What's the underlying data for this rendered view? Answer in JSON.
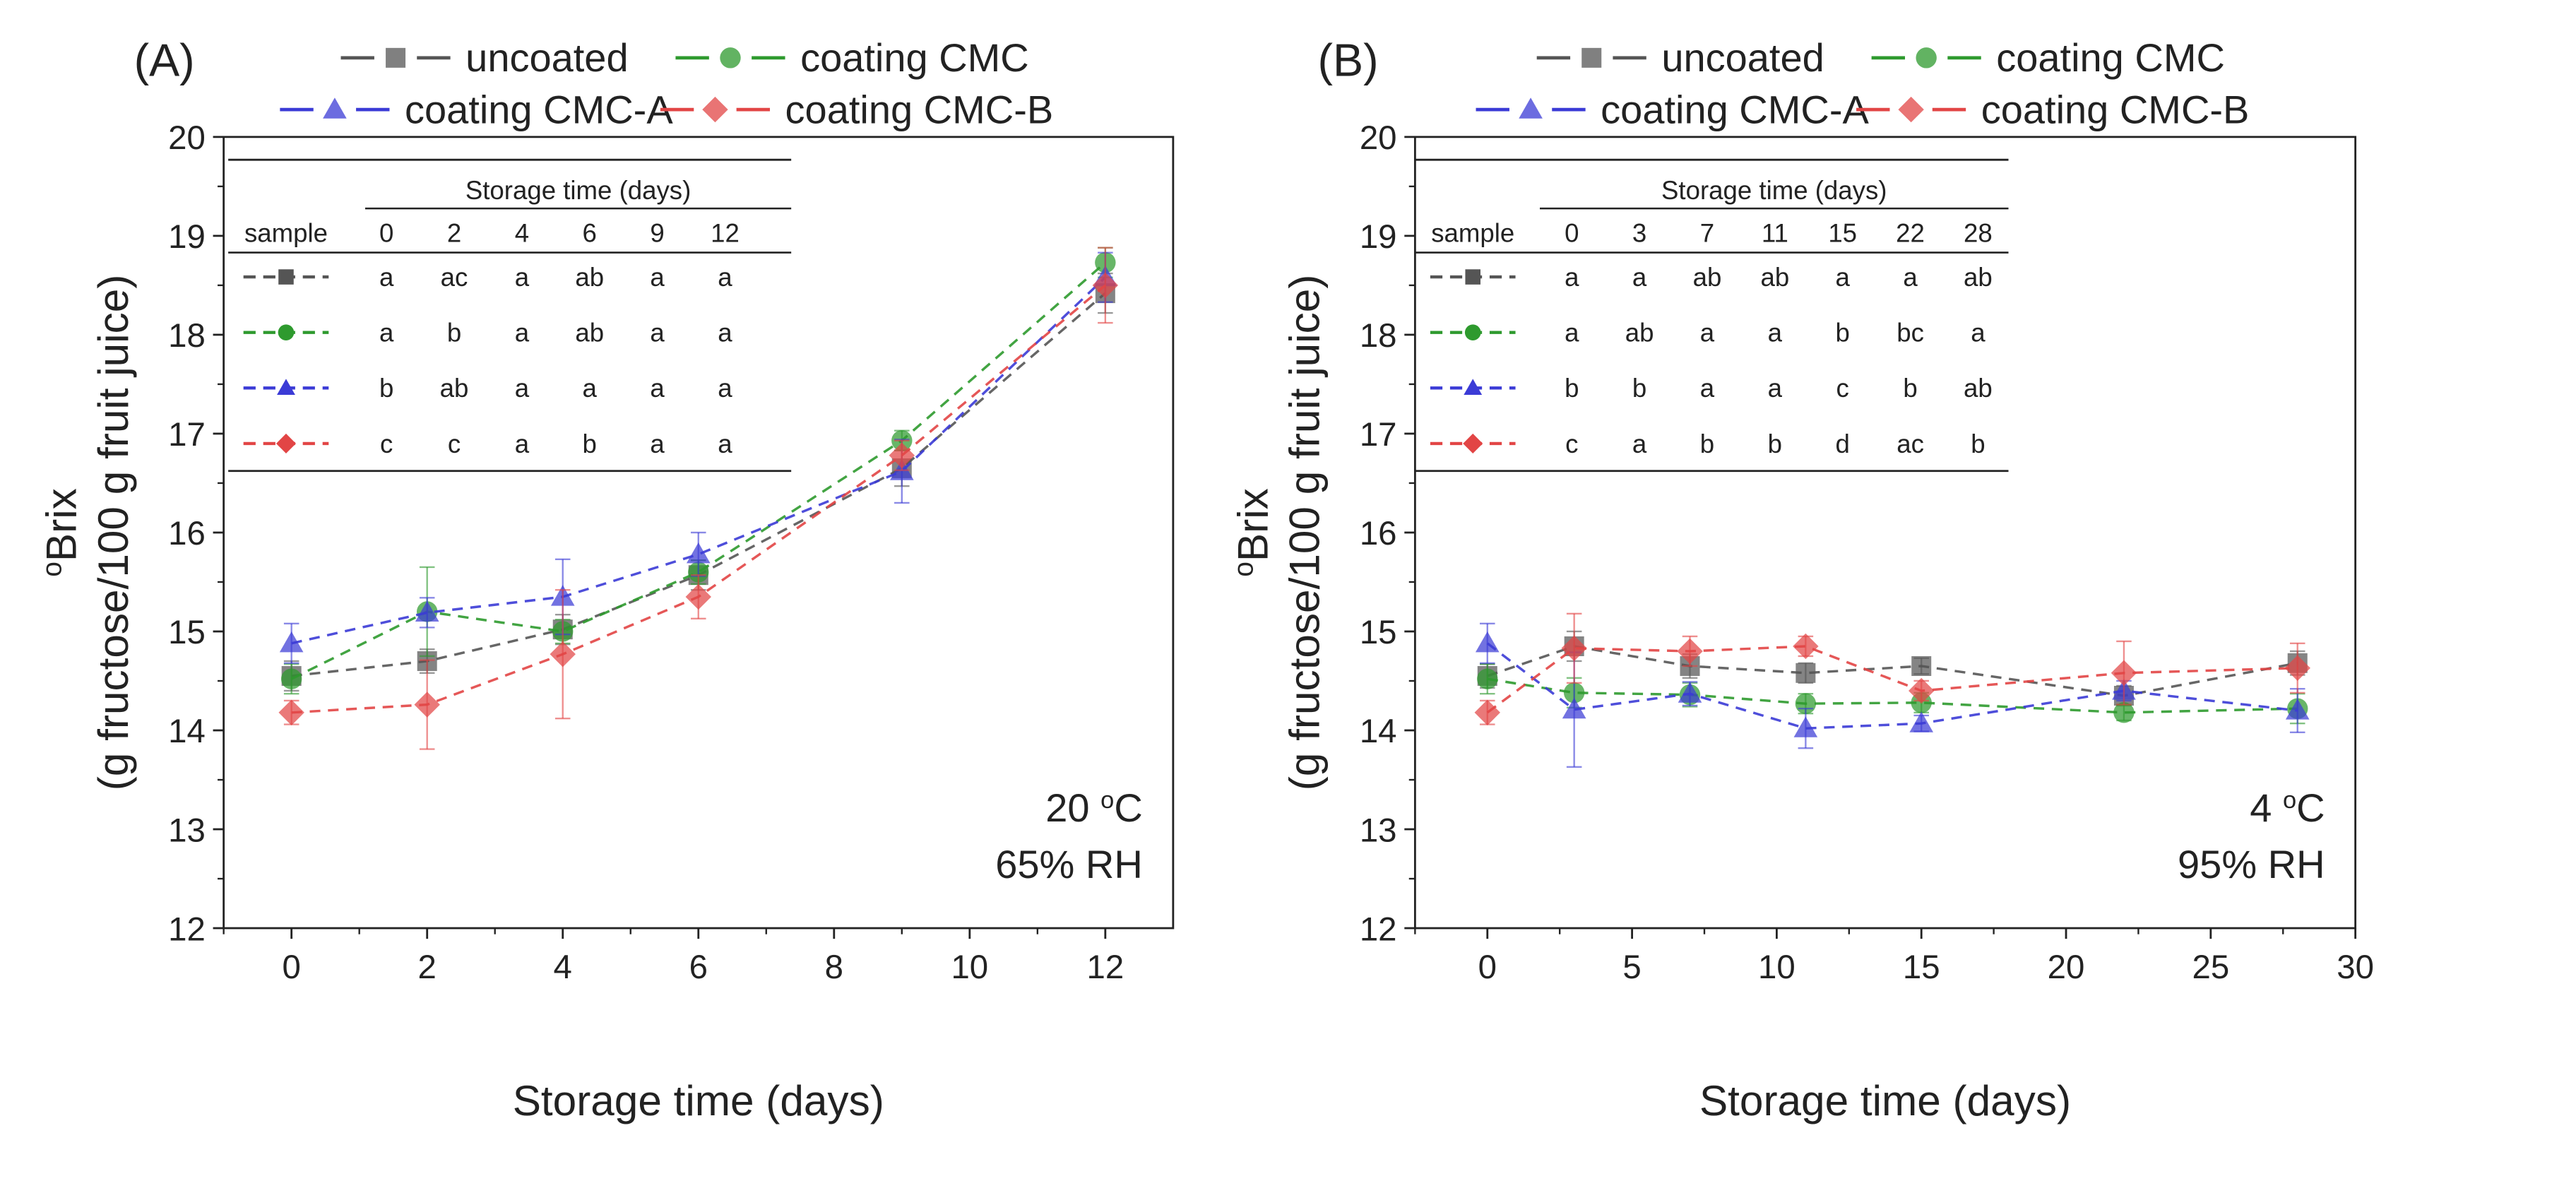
{
  "colors": {
    "uncoated": "#555555",
    "coating CMC": "#2e9a2e",
    "coating CMC-A": "#3b3bd6",
    "coating CMC-B": "#e24545"
  },
  "chart_data": [
    {
      "panel": "(A)",
      "type": "line",
      "xlabel": "Storage time (days)",
      "ylabel_line1": "Brix",
      "ylabel_sup": "o",
      "ylabel_line2": "(g fructose/100 g fruit juice)",
      "xlim": [
        -1,
        13
      ],
      "ylim": [
        12,
        20
      ],
      "xticks": [
        0,
        2,
        4,
        6,
        8,
        10,
        12
      ],
      "yticks": [
        12,
        13,
        14,
        15,
        16,
        17,
        18,
        19,
        20
      ],
      "condition": {
        "temp_value": "20 ",
        "temp_sup": "o",
        "temp_unit": "C",
        "rh": "65% RH"
      },
      "legend": [
        "uncoated",
        "coating CMC",
        "coating CMC-A",
        "coating CMC-B"
      ],
      "series": [
        {
          "name": "uncoated",
          "marker": "square",
          "x": [
            0,
            2,
            4,
            6,
            9,
            12
          ],
          "y": [
            14.55,
            14.7,
            15.02,
            15.57,
            16.65,
            18.42
          ],
          "err": [
            0.15,
            0.12,
            0.15,
            0.15,
            0.18,
            0.2
          ]
        },
        {
          "name": "coating CMC",
          "marker": "circle",
          "x": [
            0,
            2,
            4,
            6,
            9,
            12
          ],
          "y": [
            14.52,
            15.2,
            15.0,
            15.6,
            16.93,
            18.73
          ],
          "err": [
            0.15,
            0.45,
            0.12,
            0.12,
            0.1,
            0.15
          ]
        },
        {
          "name": "coating CMC-A",
          "marker": "triangle",
          "x": [
            0,
            2,
            4,
            6,
            9,
            12
          ],
          "y": [
            14.88,
            15.19,
            15.35,
            15.78,
            16.62,
            18.58
          ],
          "err": [
            0.2,
            0.15,
            0.38,
            0.22,
            0.32,
            0.25
          ]
        },
        {
          "name": "coating CMC-B",
          "marker": "diamond",
          "x": [
            0,
            2,
            4,
            6,
            9,
            12
          ],
          "y": [
            14.18,
            14.26,
            14.77,
            15.35,
            16.78,
            18.5
          ],
          "err": [
            0.12,
            0.45,
            0.65,
            0.22,
            0.15,
            0.38
          ]
        }
      ],
      "table": {
        "header": "Storage time (days)",
        "sample_label": "sample",
        "columns": [
          "0",
          "2",
          "4",
          "6",
          "9",
          "12"
        ],
        "rows": [
          {
            "series": "uncoated",
            "values": [
              "a",
              "ac",
              "a",
              "ab",
              "a",
              "a"
            ]
          },
          {
            "series": "coating CMC",
            "values": [
              "a",
              "b",
              "a",
              "ab",
              "a",
              "a"
            ]
          },
          {
            "series": "coating CMC-A",
            "values": [
              "b",
              "ab",
              "a",
              "a",
              "a",
              "a"
            ]
          },
          {
            "series": "coating CMC-B",
            "values": [
              "c",
              "c",
              "a",
              "b",
              "a",
              "a"
            ]
          }
        ]
      }
    },
    {
      "panel": "(B)",
      "type": "line",
      "xlabel": "Storage time (days)",
      "ylabel_line1": "Brix",
      "ylabel_sup": "o",
      "ylabel_line2": "(g fructose/100 g fruit juice)",
      "xlim": [
        -2.5,
        30
      ],
      "ylim": [
        12,
        20
      ],
      "xticks": [
        0,
        5,
        10,
        15,
        20,
        25,
        30
      ],
      "yticks": [
        12,
        13,
        14,
        15,
        16,
        17,
        18,
        19,
        20
      ],
      "condition": {
        "temp_value": "4 ",
        "temp_sup": "o",
        "temp_unit": "C",
        "rh": "95% RH"
      },
      "legend": [
        "uncoated",
        "coating CMC",
        "coating CMC-A",
        "coating CMC-B"
      ],
      "series": [
        {
          "name": "uncoated",
          "marker": "square",
          "x": [
            0,
            3,
            7,
            11,
            15,
            22,
            28
          ],
          "y": [
            14.55,
            14.85,
            14.65,
            14.58,
            14.65,
            14.35,
            14.68
          ],
          "err": [
            0.12,
            0.15,
            0.12,
            0.1,
            0.08,
            0.1,
            0.12
          ]
        },
        {
          "name": "coating CMC",
          "marker": "circle",
          "x": [
            0,
            3,
            7,
            11,
            15,
            22,
            28
          ],
          "y": [
            14.52,
            14.38,
            14.36,
            14.27,
            14.28,
            14.18,
            14.22
          ],
          "err": [
            0.15,
            0.15,
            0.12,
            0.1,
            0.1,
            0.08,
            0.15
          ]
        },
        {
          "name": "coating CMC-A",
          "marker": "triangle",
          "x": [
            0,
            3,
            7,
            11,
            15,
            22,
            28
          ],
          "y": [
            14.88,
            14.21,
            14.37,
            14.02,
            14.07,
            14.4,
            14.2
          ],
          "err": [
            0.2,
            0.58,
            0.12,
            0.2,
            0.08,
            0.1,
            0.22
          ]
        },
        {
          "name": "coating CMC-B",
          "marker": "diamond",
          "x": [
            0,
            3,
            7,
            11,
            15,
            22,
            28
          ],
          "y": [
            14.18,
            14.83,
            14.8,
            14.85,
            14.4,
            14.58,
            14.63
          ],
          "err": [
            0.12,
            0.35,
            0.15,
            0.1,
            0.1,
            0.32,
            0.25
          ]
        }
      ],
      "table": {
        "header": "Storage time (days)",
        "sample_label": "sample",
        "columns": [
          "0",
          "3",
          "7",
          "11",
          "15",
          "22",
          "28"
        ],
        "rows": [
          {
            "series": "uncoated",
            "values": [
              "a",
              "a",
              "ab",
              "ab",
              "a",
              "a",
              "ab"
            ]
          },
          {
            "series": "coating CMC",
            "values": [
              "a",
              "ab",
              "a",
              "a",
              "b",
              "bc",
              "a"
            ]
          },
          {
            "series": "coating CMC-A",
            "values": [
              "b",
              "b",
              "a",
              "a",
              "c",
              "b",
              "ab"
            ]
          },
          {
            "series": "coating CMC-B",
            "values": [
              "c",
              "a",
              "b",
              "b",
              "d",
              "ac",
              "b"
            ]
          }
        ]
      }
    }
  ]
}
